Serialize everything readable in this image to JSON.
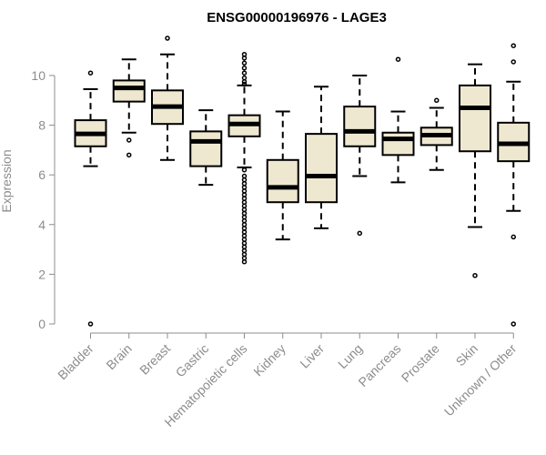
{
  "chart_data": {
    "type": "boxplot",
    "title": "ENSG00000196976 - LAGE3",
    "ylabel": "Expression",
    "ylim": [
      0,
      11.5
    ],
    "yticks": [
      0,
      2,
      4,
      6,
      8,
      10
    ],
    "box_fill": "#efe8d0",
    "box_stroke": "#000000",
    "axis_color": "#8c8c8c",
    "categories": [
      "Bladder",
      "Brain",
      "Breast",
      "Gastric",
      "Hematopoietic cells",
      "Kidney",
      "Liver",
      "Lung",
      "Pancreas",
      "Prostate",
      "Skin",
      "Unknown / Other"
    ],
    "boxes": [
      {
        "category": "Bladder",
        "whisker_low": 6.35,
        "q1": 7.15,
        "median": 7.65,
        "q3": 8.2,
        "whisker_high": 9.45,
        "outliers": [
          10.1,
          0.0
        ]
      },
      {
        "category": "Brain",
        "whisker_low": 7.7,
        "q1": 8.95,
        "median": 9.5,
        "q3": 9.8,
        "whisker_high": 10.65,
        "outliers": [
          7.4,
          6.8
        ]
      },
      {
        "category": "Breast",
        "whisker_low": 6.6,
        "q1": 8.05,
        "median": 8.75,
        "q3": 9.4,
        "whisker_high": 10.85,
        "outliers": [
          11.5
        ]
      },
      {
        "category": "Gastric",
        "whisker_low": 5.6,
        "q1": 6.35,
        "median": 7.35,
        "q3": 7.75,
        "whisker_high": 8.6,
        "outliers": []
      },
      {
        "category": "Hematopoietic cells",
        "whisker_low": 6.3,
        "q1": 7.55,
        "median": 8.05,
        "q3": 8.4,
        "whisker_high": 9.6,
        "outliers": [
          10.85,
          10.7,
          10.5,
          10.3,
          10.1,
          9.9,
          9.75,
          9.65,
          6.2,
          5.95,
          5.8,
          5.65,
          5.5,
          5.35,
          5.2,
          5.05,
          4.9,
          4.75,
          4.6,
          4.45,
          4.3,
          4.15,
          4.0,
          3.85,
          3.7,
          3.55,
          3.4,
          3.25,
          3.1,
          2.95,
          2.8,
          2.65,
          2.5
        ]
      },
      {
        "category": "Kidney",
        "whisker_low": 3.4,
        "q1": 4.9,
        "median": 5.5,
        "q3": 6.6,
        "whisker_high": 8.55,
        "outliers": []
      },
      {
        "category": "Liver",
        "whisker_low": 3.85,
        "q1": 4.9,
        "median": 5.95,
        "q3": 7.65,
        "whisker_high": 9.55,
        "outliers": []
      },
      {
        "category": "Lung",
        "whisker_low": 5.95,
        "q1": 7.15,
        "median": 7.75,
        "q3": 8.75,
        "whisker_high": 10.0,
        "outliers": [
          3.65
        ]
      },
      {
        "category": "Pancreas",
        "whisker_low": 5.7,
        "q1": 6.8,
        "median": 7.45,
        "q3": 7.7,
        "whisker_high": 8.55,
        "outliers": [
          10.65
        ]
      },
      {
        "category": "Prostate",
        "whisker_low": 6.2,
        "q1": 7.2,
        "median": 7.6,
        "q3": 7.9,
        "whisker_high": 8.7,
        "outliers": [
          9.0
        ]
      },
      {
        "category": "Skin",
        "whisker_low": 3.9,
        "q1": 6.95,
        "median": 8.7,
        "q3": 9.6,
        "whisker_high": 10.45,
        "outliers": [
          1.95
        ]
      },
      {
        "category": "Unknown / Other",
        "whisker_low": 4.55,
        "q1": 6.55,
        "median": 7.25,
        "q3": 8.1,
        "whisker_high": 9.75,
        "outliers": [
          11.2,
          10.55,
          3.5,
          0.0
        ]
      }
    ]
  }
}
